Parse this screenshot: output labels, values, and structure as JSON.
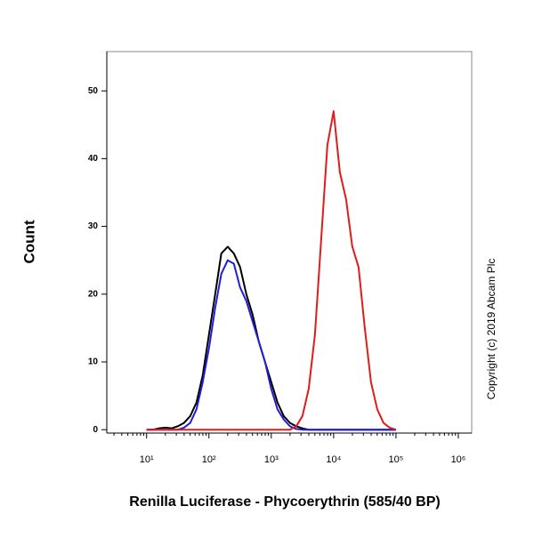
{
  "chart_data": {
    "type": "line",
    "y_label": "Count",
    "x_label": "Renilla Luciferase - Phycoerythrin (585/40 BP)",
    "annotation": "Copyright (c) 2019 Abcam Plc",
    "x_log": true,
    "x": [
      10,
      12.6,
      15.8,
      20,
      25.1,
      31.6,
      39.8,
      50.1,
      63.1,
      79.4,
      100,
      126,
      158,
      200,
      251,
      316,
      398,
      501,
      631,
      794,
      1000,
      1259,
      1585,
      1995,
      2512,
      3162,
      3981,
      5012,
      6310,
      7943,
      10000,
      12589,
      15849,
      19953,
      25119,
      31623,
      39811,
      50119,
      63096,
      79433,
      100000
    ],
    "series": [
      {
        "color": "#000000",
        "values": [
          0,
          0,
          0.2,
          0.3,
          0.2,
          0.5,
          1,
          2,
          4,
          8,
          14,
          20,
          26,
          27,
          26,
          24,
          20,
          17,
          13,
          10,
          7,
          4,
          2,
          1,
          0.5,
          0.2,
          0,
          0,
          0,
          0,
          0,
          0,
          0,
          0,
          0,
          0,
          0,
          0,
          0,
          0,
          0
        ]
      },
      {
        "color": "#1f1fd6",
        "values": [
          0,
          0,
          0,
          0,
          0,
          0,
          0.3,
          1,
          3,
          7,
          12,
          18,
          23,
          25,
          24.5,
          21,
          19,
          16,
          13,
          10,
          6,
          3,
          1.5,
          0.5,
          0.1,
          0,
          0,
          0,
          0,
          0,
          0,
          0,
          0,
          0,
          0,
          0,
          0,
          0,
          0,
          0,
          0
        ]
      },
      {
        "color": "#e01b1b",
        "values": [
          0,
          0,
          0,
          0,
          0,
          0,
          0,
          0,
          0,
          0,
          0,
          0,
          0,
          0,
          0,
          0,
          0,
          0,
          0,
          0,
          0,
          0,
          0,
          0,
          0.5,
          2,
          6,
          14,
          28,
          42,
          47,
          38,
          34,
          27,
          24,
          15,
          7,
          3,
          1,
          0.3,
          0
        ]
      }
    ],
    "xlim": [
      2.3,
      1640000
    ],
    "xticks": [
      {
        "value": 10,
        "label": "10¹"
      },
      {
        "value": 100,
        "label": "10²"
      },
      {
        "value": 1000,
        "label": "10³"
      },
      {
        "value": 10000,
        "label": "10⁴"
      },
      {
        "value": 100000,
        "label": "10⁵"
      },
      {
        "value": 1000000,
        "label": "10⁶"
      }
    ],
    "ylim": [
      -0.5,
      55.8
    ],
    "yticks": [
      0,
      10,
      20,
      30,
      40,
      50
    ]
  }
}
